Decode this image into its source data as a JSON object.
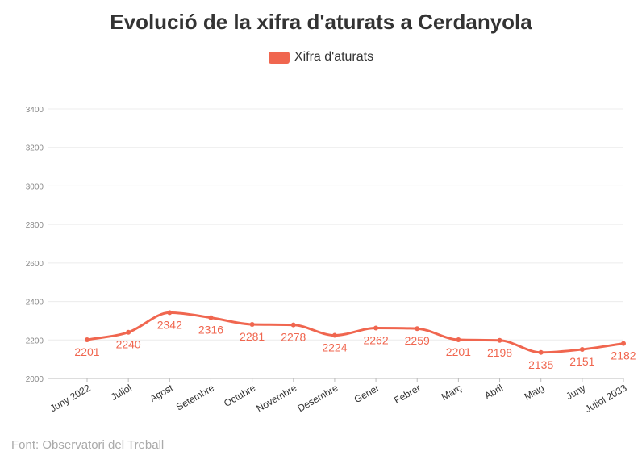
{
  "chart_data": {
    "type": "line",
    "title": "Evolució de la xifra d'aturats a Cerdanyola",
    "legend": [
      "Xifra d'aturats"
    ],
    "categories": [
      "Juny 2022",
      "Juliol",
      "Agost",
      "Setembre",
      "Octubre",
      "Novembre",
      "Desembre",
      "Gener",
      "Febrer",
      "Març",
      "Abril",
      "Maig",
      "Juny",
      "Juliol 2033"
    ],
    "series": [
      {
        "name": "Xifra d'aturats",
        "values": [
          2201,
          2240,
          2342,
          2316,
          2281,
          2278,
          2224,
          2262,
          2259,
          2201,
          2198,
          2135,
          2151,
          2182
        ]
      }
    ],
    "ylim": [
      2000,
      3400
    ],
    "yticks": [
      2000,
      2200,
      2400,
      2600,
      2800,
      3000,
      3200,
      3400
    ],
    "grid": true,
    "legend_position": "top-center",
    "color": "#f0664f"
  },
  "source": "Font: Observatori del Treball"
}
